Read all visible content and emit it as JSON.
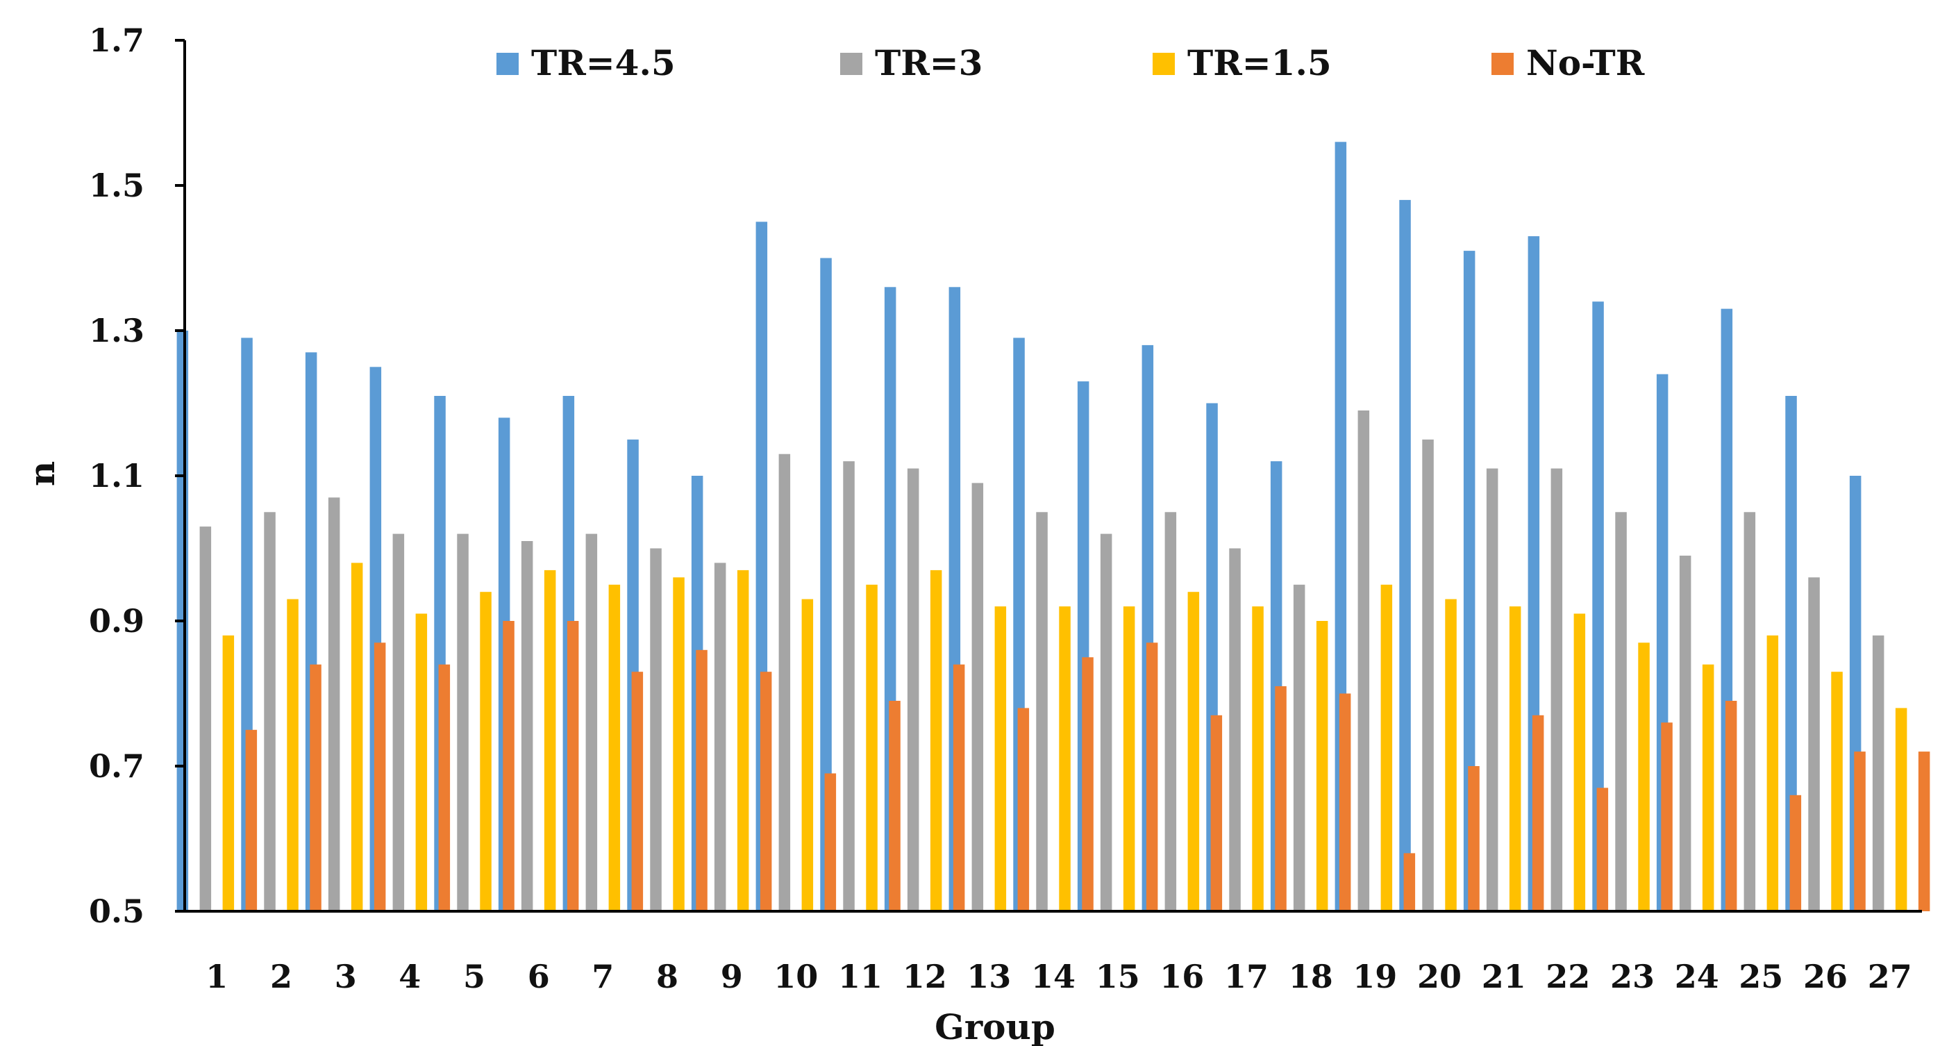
{
  "chart_data": {
    "type": "bar",
    "title": "",
    "xlabel": "Group",
    "ylabel": "n",
    "ylim": [
      0.5,
      1.7
    ],
    "yticks": [
      "0.5",
      "0.7",
      "0.9",
      "1.1",
      "1.3",
      "1.5",
      "1.7"
    ],
    "grid": false,
    "legend_position": "top",
    "categories": [
      "1",
      "2",
      "3",
      "4",
      "5",
      "6",
      "7",
      "8",
      "9",
      "10",
      "11",
      "12",
      "13",
      "14",
      "15",
      "16",
      "17",
      "18",
      "19",
      "20",
      "21",
      "22",
      "23",
      "24",
      "25",
      "26",
      "27"
    ],
    "series": [
      {
        "name": "TR=4.5",
        "color": "#5B9BD5",
        "values": [
          1.3,
          1.29,
          1.27,
          1.25,
          1.21,
          1.18,
          1.21,
          1.15,
          1.1,
          1.45,
          1.4,
          1.36,
          1.36,
          1.29,
          1.23,
          1.28,
          1.2,
          1.12,
          1.56,
          1.48,
          1.41,
          1.43,
          1.34,
          1.24,
          1.33,
          1.21,
          1.1
        ]
      },
      {
        "name": "TR=3",
        "color": "#A5A5A5",
        "values": [
          1.03,
          1.05,
          1.07,
          1.02,
          1.02,
          1.01,
          1.02,
          1.0,
          0.98,
          1.13,
          1.12,
          1.11,
          1.09,
          1.05,
          1.02,
          1.05,
          1.0,
          0.95,
          1.19,
          1.15,
          1.11,
          1.11,
          1.05,
          0.99,
          1.05,
          0.96,
          0.88
        ]
      },
      {
        "name": "TR=1.5",
        "color": "#FFC000",
        "values": [
          0.88,
          0.93,
          0.98,
          0.91,
          0.94,
          0.97,
          0.95,
          0.96,
          0.97,
          0.93,
          0.95,
          0.97,
          0.92,
          0.92,
          0.92,
          0.94,
          0.92,
          0.9,
          0.95,
          0.93,
          0.92,
          0.91,
          0.87,
          0.84,
          0.88,
          0.83,
          0.78
        ]
      },
      {
        "name": "No-TR",
        "color": "#ED7D31",
        "values": [
          0.75,
          0.84,
          0.87,
          0.84,
          0.9,
          0.9,
          0.83,
          0.86,
          0.83,
          0.69,
          0.79,
          0.84,
          0.78,
          0.85,
          0.87,
          0.77,
          0.81,
          0.8,
          0.58,
          0.7,
          0.77,
          0.67,
          0.76,
          0.79,
          0.66,
          0.72,
          0.72
        ]
      }
    ]
  }
}
